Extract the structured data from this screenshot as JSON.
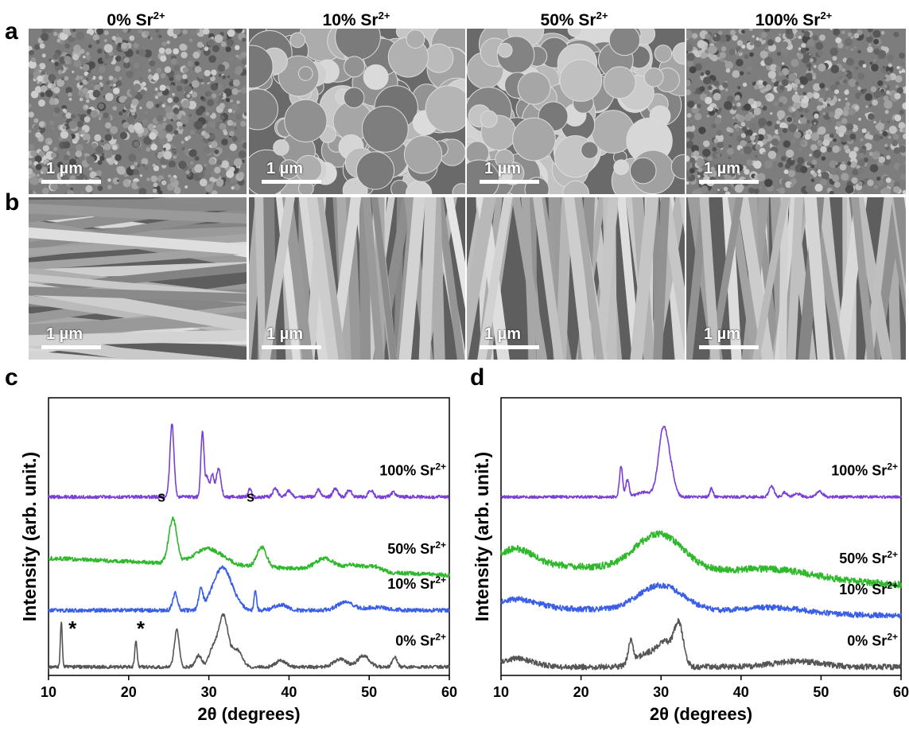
{
  "panel_labels": [
    "a",
    "b",
    "c",
    "d"
  ],
  "columns": [
    {
      "pct": "0%",
      "ion": "Sr",
      "charge": "2+"
    },
    {
      "pct": "10%",
      "ion": "Sr",
      "charge": "2+"
    },
    {
      "pct": "50%",
      "ion": "Sr",
      "charge": "2+"
    },
    {
      "pct": "100%",
      "ion": "Sr",
      "charge": "2+"
    }
  ],
  "scale_bar_label": "1 µm",
  "chart_data": [
    {
      "type": "line",
      "panel": "c",
      "xlabel": "2θ (degrees)",
      "ylabel": "Intensity (arb. unit.)",
      "xlim": [
        10,
        60
      ],
      "xticks": [
        10,
        20,
        30,
        40,
        50,
        60
      ],
      "series": [
        {
          "name": "100% Sr2+",
          "label_pct": "100%",
          "label_charge": "2+",
          "color": "#7a3fd6",
          "offset": 3.0,
          "peaks": [
            [
              25.4,
              1.3,
              0.25
            ],
            [
              29.2,
              1.15,
              0.2
            ],
            [
              29.8,
              0.35,
              0.2
            ],
            [
              30.4,
              0.4,
              0.2
            ],
            [
              31.2,
              0.5,
              0.3
            ],
            [
              35.1,
              0.15,
              0.2
            ],
            [
              38.3,
              0.15,
              0.3
            ],
            [
              40.0,
              0.12,
              0.3
            ],
            [
              43.7,
              0.12,
              0.3
            ],
            [
              45.8,
              0.15,
              0.3
            ],
            [
              47.5,
              0.12,
              0.3
            ],
            [
              50.2,
              0.12,
              0.3
            ],
            [
              53.0,
              0.08,
              0.3
            ]
          ],
          "noise": 0.03
        },
        {
          "name": "50% Sr2+",
          "label_pct": "50%",
          "label_charge": "2+",
          "color": "#2fb82b",
          "offset": 1.92,
          "peaks": [
            [
              25.5,
              0.78,
              0.5
            ],
            [
              30.0,
              0.28,
              1.8
            ],
            [
              36.6,
              0.35,
              0.6
            ],
            [
              44.5,
              0.2,
              1.2
            ],
            [
              48.0,
              0.1,
              1.0
            ],
            [
              50.5,
              0.1,
              1.0
            ]
          ],
          "noise": 0.035,
          "slope": -0.006
        },
        {
          "name": "10% Sr2+",
          "label_pct": "10%",
          "label_charge": "2+",
          "color": "#3a5ee6",
          "offset": 1.0,
          "peaks": [
            [
              25.8,
              0.3,
              0.3
            ],
            [
              29.0,
              0.35,
              0.25
            ],
            [
              31.7,
              0.75,
              1.2
            ],
            [
              35.8,
              0.35,
              0.15
            ],
            [
              39.0,
              0.1,
              0.8
            ],
            [
              47.0,
              0.14,
              1.0
            ],
            [
              51.0,
              0.05,
              1.5
            ]
          ],
          "noise": 0.035
        },
        {
          "name": "0% Sr2+",
          "label_pct": "0%",
          "label_charge": "2+",
          "color": "#555555",
          "offset": 0.0,
          "peaks": [
            [
              11.6,
              0.8,
              0.12
            ],
            [
              20.9,
              0.45,
              0.15
            ],
            [
              26.0,
              0.65,
              0.3
            ],
            [
              28.7,
              0.2,
              0.4
            ],
            [
              30.5,
              0.3,
              0.5
            ],
            [
              31.8,
              0.9,
              0.6
            ],
            [
              33.5,
              0.3,
              0.6
            ],
            [
              39.0,
              0.12,
              0.6
            ],
            [
              46.4,
              0.14,
              0.8
            ],
            [
              49.3,
              0.2,
              0.7
            ],
            [
              53.2,
              0.18,
              0.3
            ]
          ],
          "noise": 0.03
        }
      ],
      "annotations": [
        {
          "text": "*",
          "x": 13.0,
          "series": "0% Sr2+"
        },
        {
          "text": "*",
          "x": 21.5,
          "series": "0% Sr2+"
        },
        {
          "text": "s",
          "x": 24.1,
          "series": "50% Sr2+"
        },
        {
          "text": "s",
          "x": 35.2,
          "series": "50% Sr2+"
        }
      ]
    },
    {
      "type": "line",
      "panel": "d",
      "xlabel": "2θ (degrees)",
      "ylabel": "Intensity (arb. unit.)",
      "xlim": [
        10,
        60
      ],
      "xticks": [
        10,
        20,
        30,
        40,
        50,
        60
      ],
      "series": [
        {
          "name": "100% Sr2+",
          "label_pct": "100%",
          "label_charge": "2+",
          "color": "#7a3fd6",
          "offset": 3.0,
          "peaks": [
            [
              25.0,
              0.55,
              0.2
            ],
            [
              25.8,
              0.3,
              0.2
            ],
            [
              28.0,
              0.08,
              1.0
            ],
            [
              30.3,
              1.2,
              0.6
            ],
            [
              31.3,
              0.3,
              0.5
            ],
            [
              36.3,
              0.15,
              0.2
            ],
            [
              43.8,
              0.2,
              0.3
            ],
            [
              45.5,
              0.08,
              0.3
            ],
            [
              47.0,
              0.06,
              0.4
            ],
            [
              49.8,
              0.1,
              0.4
            ]
          ],
          "noise": 0.025
        },
        {
          "name": "50% Sr2+",
          "label_pct": "50%",
          "label_charge": "2+",
          "color": "#2fb82b",
          "offset": 1.85,
          "peaks": [
            [
              29.8,
              0.65,
              3.0
            ],
            [
              44.0,
              0.15,
              5.0
            ],
            [
              12.0,
              0.25,
              2.0
            ]
          ],
          "noise": 0.06,
          "slope": -0.008
        },
        {
          "name": "10% Sr2+",
          "label_pct": "10%",
          "label_charge": "2+",
          "color": "#3a5ee6",
          "offset": 1.05,
          "peaks": [
            [
              30.0,
              0.45,
              2.8
            ],
            [
              44.0,
              0.1,
              4.0
            ],
            [
              12.0,
              0.15,
              2.5
            ]
          ],
          "noise": 0.05,
          "slope": -0.003
        },
        {
          "name": "0% Sr2+",
          "label_pct": "0%",
          "label_charge": "2+",
          "color": "#555555",
          "offset": 0.0,
          "peaks": [
            [
              26.2,
              0.4,
              0.3
            ],
            [
              28.5,
              0.25,
              1.5
            ],
            [
              30.5,
              0.35,
              0.8
            ],
            [
              32.2,
              0.75,
              0.6
            ],
            [
              12.0,
              0.15,
              2.0
            ],
            [
              47.0,
              0.1,
              3.0
            ]
          ],
          "noise": 0.05
        }
      ],
      "annotations": []
    }
  ]
}
